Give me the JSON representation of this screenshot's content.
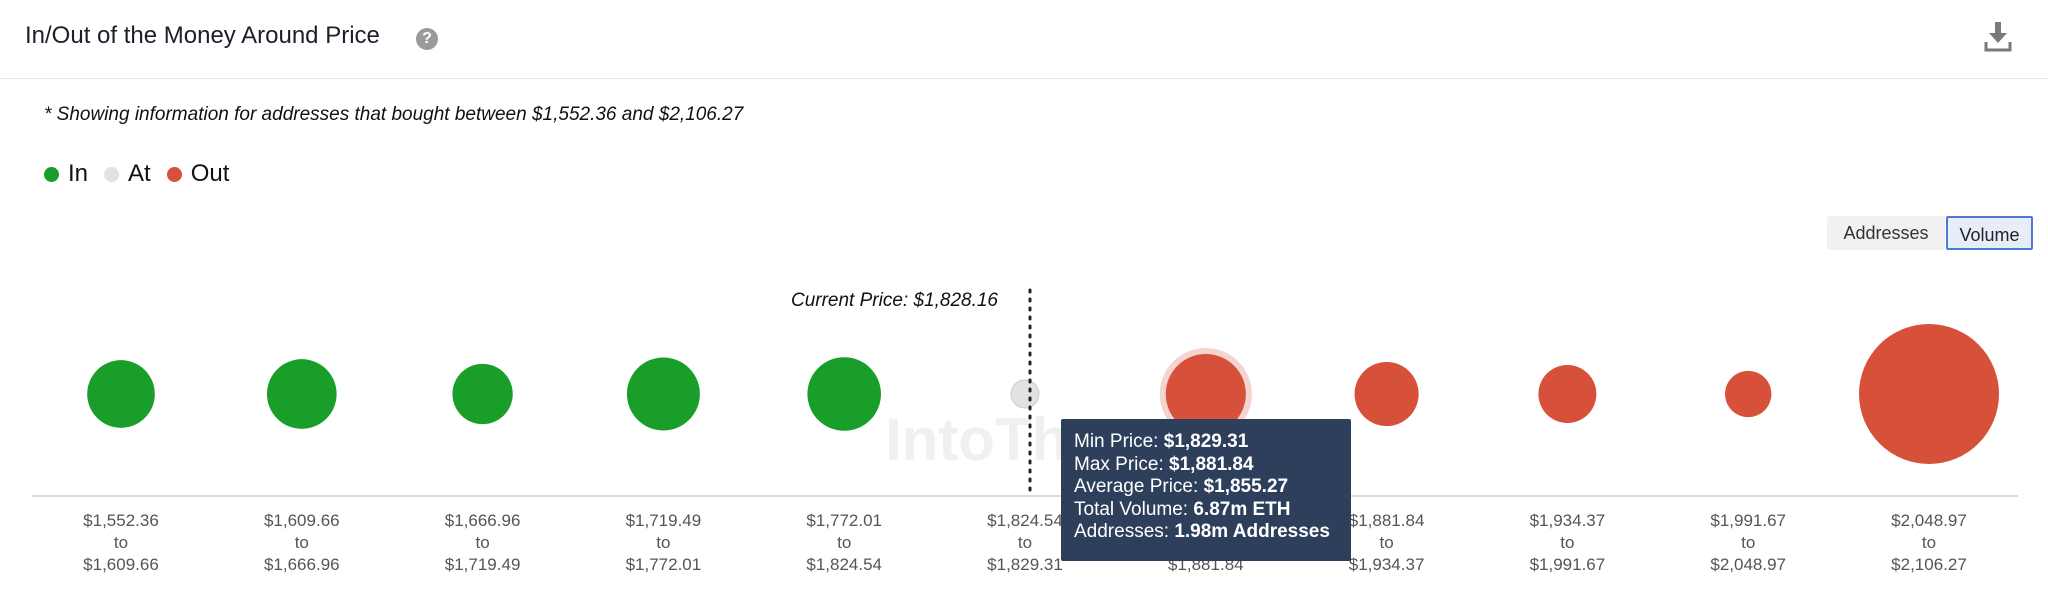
{
  "header": {
    "title": "In/Out of the Money Around Price",
    "help_icon": "question-mark-circle-icon",
    "download_icon": "download-icon"
  },
  "note": "* Showing information for addresses that bought between $1,552.36 and $2,106.27",
  "legend": [
    {
      "label": "In",
      "color": "#1a9e2a"
    },
    {
      "label": "At",
      "color": "#e2e2e2"
    },
    {
      "label": "Out",
      "color": "#d6503a"
    }
  ],
  "toggles": {
    "addresses": "Addresses",
    "volume": "Volume",
    "active": "Volume"
  },
  "watermark": "IntoThe",
  "chart_data": {
    "type": "bubble",
    "current_price_label": "Current Price: $1,828.16",
    "current_price": 1828.16,
    "size_metric": "Volume",
    "buckets": [
      {
        "from": "$1,552.36",
        "to": "$1,609.66",
        "status": "In",
        "volume": 4.9
      },
      {
        "from": "$1,609.66",
        "to": "$1,666.96",
        "status": "In",
        "volume": 5.2
      },
      {
        "from": "$1,666.96",
        "to": "$1,719.49",
        "status": "In",
        "volume": 3.9
      },
      {
        "from": "$1,719.49",
        "to": "$1,772.01",
        "status": "In",
        "volume": 5.7
      },
      {
        "from": "$1,772.01",
        "to": "$1,824.54",
        "status": "In",
        "volume": 5.8
      },
      {
        "from": "$1,824.54",
        "to": "$1,829.31",
        "status": "At",
        "volume": 0.5
      },
      {
        "from": "$1,829.31",
        "to": "$1,881.84",
        "status": "Out",
        "volume": 6.87
      },
      {
        "from": "$1,881.84",
        "to": "$1,934.37",
        "status": "Out",
        "volume": 4.4
      },
      {
        "from": "$1,934.37",
        "to": "$1,991.67",
        "status": "Out",
        "volume": 3.6
      },
      {
        "from": "$1,991.67",
        "to": "$2,048.97",
        "status": "Out",
        "volume": 2.3
      },
      {
        "from": "$2,048.97",
        "to": "$2,106.27",
        "status": "Out",
        "volume": 21.0
      }
    ],
    "to_word": "to",
    "highlighted_index": 6,
    "tooltip": {
      "min_price_label": "Min Price:",
      "min_price": "$1,829.31",
      "max_price_label": "Max Price:",
      "max_price": "$1,881.84",
      "avg_price_label": "Average Price:",
      "avg_price": "$1,855.27",
      "total_volume_label": "Total Volume:",
      "total_volume": "6.87m ETH",
      "addresses_label": "Addresses:",
      "addresses": "1.98m Addresses"
    }
  }
}
